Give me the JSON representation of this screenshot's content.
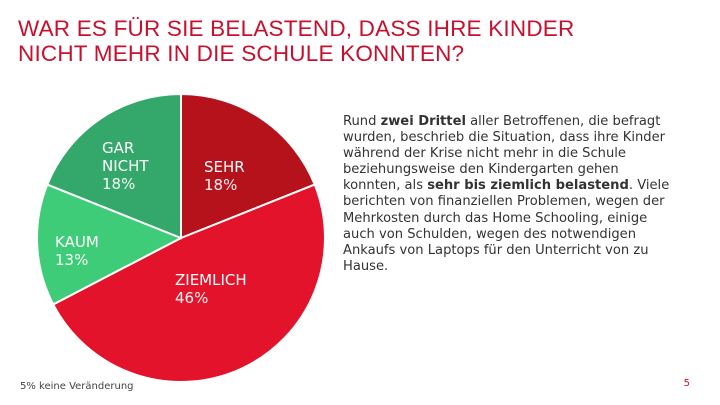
{
  "title_lines": [
    "WAR ES FÜR SIE BELASTEND, DASS IHRE KINDER",
    "NICHT MEHR IN DIE SCHULE KONNTEN?"
  ],
  "chart_data": {
    "type": "pie",
    "slices": [
      {
        "label_lines": [
          "SEHR"
        ],
        "value": 18,
        "value_text": "18%",
        "color": "#b5121b"
      },
      {
        "label_lines": [
          "ZIEMLICH"
        ],
        "value": 46,
        "value_text": "46%",
        "color": "#e2132a"
      },
      {
        "label_lines": [
          "KAUM"
        ],
        "value": 13,
        "value_text": "13%",
        "color": "#3fcc78"
      },
      {
        "label_lines": [
          "GAR",
          "NICHT"
        ],
        "value": 18,
        "value_text": "18%",
        "color": "#34a86a"
      }
    ]
  },
  "body_text": {
    "p1": "Rund ",
    "b1": "zwei Drittel",
    "p2": " aller Betroffenen, die befragt wurden, beschrieb die Situation, dass ihre Kinder während der Krise nicht mehr in die Schule beziehungsweise den Kindergarten gehen konnten, als ",
    "b2": "sehr bis ziemlich belastend",
    "p3": ". Viele berichten von finanziellen Problemen, wegen der Mehrkosten durch das Home Schooling, einige auch von Schulden, wegen des notwendigen Ankaufs von Laptops für den Unterricht von zu Hause."
  },
  "footnote": "5% keine Veränderung",
  "page_number": "5"
}
